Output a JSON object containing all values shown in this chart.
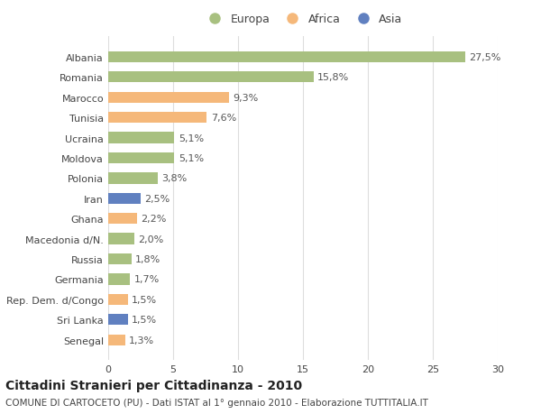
{
  "categories": [
    "Albania",
    "Romania",
    "Marocco",
    "Tunisia",
    "Ucraina",
    "Moldova",
    "Polonia",
    "Iran",
    "Ghana",
    "Macedonia d/N.",
    "Russia",
    "Germania",
    "Rep. Dem. d/Congo",
    "Sri Lanka",
    "Senegal"
  ],
  "values": [
    27.5,
    15.8,
    9.3,
    7.6,
    5.1,
    5.1,
    3.8,
    2.5,
    2.2,
    2.0,
    1.8,
    1.7,
    1.5,
    1.5,
    1.3
  ],
  "labels": [
    "27,5%",
    "15,8%",
    "9,3%",
    "7,6%",
    "5,1%",
    "5,1%",
    "3,8%",
    "2,5%",
    "2,2%",
    "2,0%",
    "1,8%",
    "1,7%",
    "1,5%",
    "1,5%",
    "1,3%"
  ],
  "continents": [
    "Europa",
    "Europa",
    "Africa",
    "Africa",
    "Europa",
    "Europa",
    "Europa",
    "Asia",
    "Africa",
    "Europa",
    "Europa",
    "Europa",
    "Africa",
    "Asia",
    "Africa"
  ],
  "colors": {
    "Europa": "#a8c080",
    "Africa": "#f5b87a",
    "Asia": "#6080c0"
  },
  "xlim": [
    0,
    30
  ],
  "xticks": [
    0,
    5,
    10,
    15,
    20,
    25,
    30
  ],
  "background_color": "#ffffff",
  "plot_bg_color": "#ffffff",
  "grid_color": "#dddddd",
  "title": "Cittadini Stranieri per Cittadinanza - 2010",
  "subtitle": "COMUNE DI CARTOCETO (PU) - Dati ISTAT al 1° gennaio 2010 - Elaborazione TUTTITALIA.IT",
  "bar_height": 0.55,
  "label_fontsize": 8,
  "tick_fontsize": 8,
  "title_fontsize": 10,
  "subtitle_fontsize": 7.5
}
